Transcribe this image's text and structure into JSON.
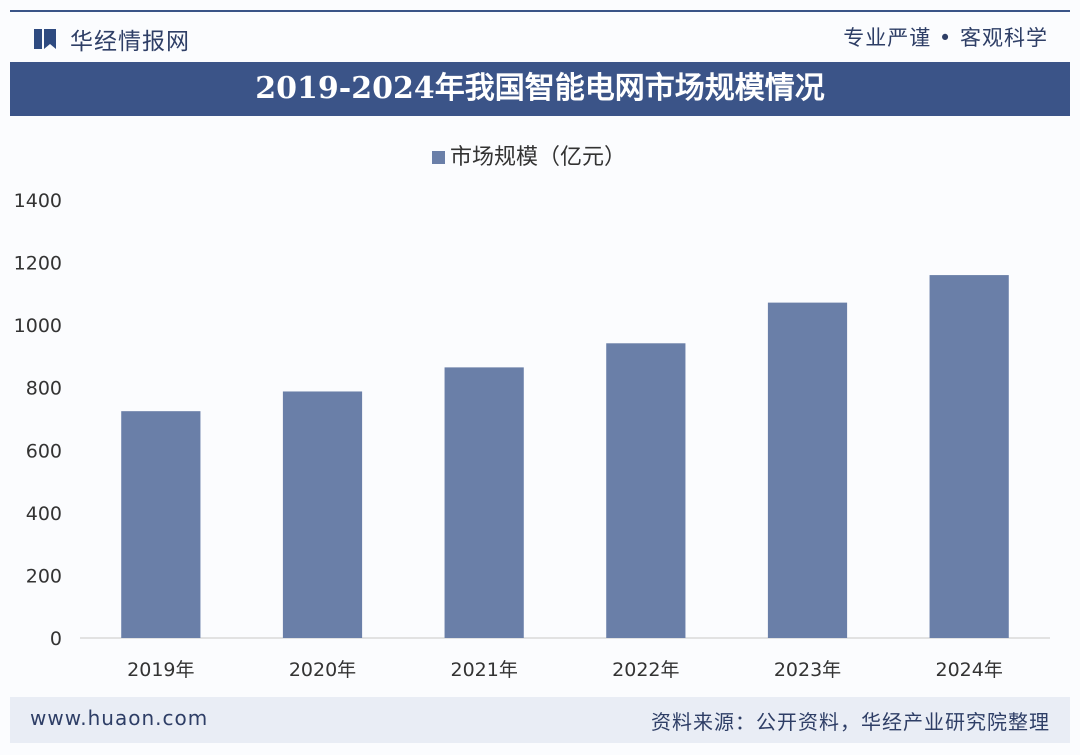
{
  "header": {
    "brand_name": "华经情报网",
    "tagline": "专业严谨 • 客观科学",
    "logo_icon": "bookmark-logo-icon"
  },
  "footer": {
    "website": "www.huaon.com",
    "source": "资料来源：公开资料，华经产业研究院整理"
  },
  "colors": {
    "accent": "#3b5488",
    "bar": "#6a7fa8",
    "text": "#2e3e66"
  },
  "chart_data": {
    "type": "bar",
    "title": "2019-2024年我国智能电网市场规模情况",
    "categories": [
      "2019年",
      "2020年",
      "2021年",
      "2022年",
      "2023年",
      "2024年"
    ],
    "series": [
      {
        "name": "市场规模（亿元）",
        "values": [
          725,
          788,
          865,
          942,
          1072,
          1160
        ]
      }
    ],
    "xlabel": "",
    "ylabel": "",
    "ylim": [
      0,
      1400
    ],
    "yticks": [
      0,
      200,
      400,
      600,
      800,
      1000,
      1200,
      1400
    ],
    "grid": false,
    "legend": "top-center"
  }
}
